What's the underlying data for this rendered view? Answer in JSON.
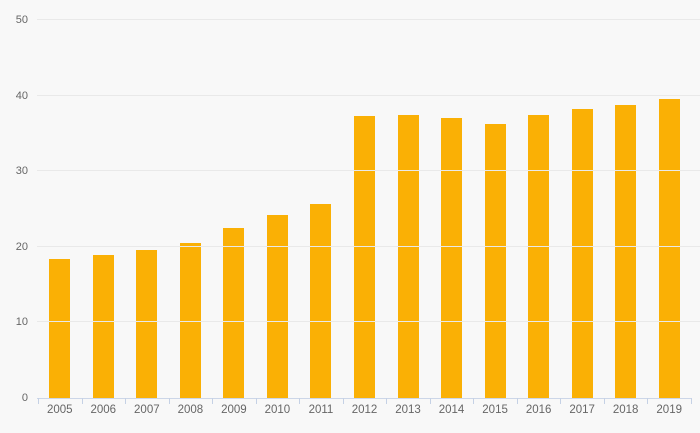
{
  "chart_data": {
    "type": "bar",
    "title": "",
    "xlabel": "",
    "ylabel": "",
    "categories": [
      "2005",
      "2006",
      "2007",
      "2008",
      "2009",
      "2010",
      "2011",
      "2012",
      "2013",
      "2014",
      "2015",
      "2016",
      "2017",
      "2018",
      "2019"
    ],
    "values": [
      18.4,
      18.9,
      19.6,
      20.5,
      22.5,
      24.2,
      25.6,
      37.3,
      37.4,
      37.0,
      36.3,
      37.5,
      38.2,
      38.8,
      39.5
    ],
    "ylim": [
      0,
      50
    ],
    "yticks": [
      0,
      10,
      20,
      30,
      40,
      50
    ],
    "grid": true,
    "legend": false
  },
  "colors": {
    "background": "#f8f8f8",
    "bar": "#FAB005",
    "gridline": "#e9e9e9",
    "axis_line": "#ccd6e8",
    "tick": "#c5d1e5",
    "label_text": "#666666"
  }
}
